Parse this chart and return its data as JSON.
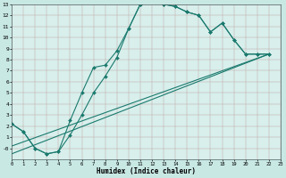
{
  "xlabel": "Humidex (Indice chaleur)",
  "xlim": [
    0,
    23
  ],
  "ylim": [
    -1,
    13
  ],
  "xticks": [
    0,
    1,
    2,
    3,
    4,
    5,
    6,
    7,
    8,
    9,
    10,
    11,
    12,
    13,
    14,
    15,
    16,
    17,
    18,
    19,
    20,
    21,
    22,
    23
  ],
  "yticks": [
    0,
    1,
    2,
    3,
    4,
    5,
    6,
    7,
    8,
    9,
    10,
    11,
    12,
    13
  ],
  "ytick_labels": [
    "-0",
    "1",
    "2",
    "3",
    "4",
    "5",
    "6",
    "7",
    "8",
    "9",
    "10",
    "11",
    "12",
    "13"
  ],
  "line_color": "#1a7a6e",
  "bg_outer": "#c8e8e4",
  "bg_inner": "#d8efec",
  "grid_color": "#c0a8a4",
  "line1_x": [
    0,
    1,
    2,
    3,
    4,
    5,
    6,
    7,
    8,
    9,
    10,
    11,
    12,
    13,
    14,
    15,
    16,
    17,
    18,
    19,
    20,
    21,
    22
  ],
  "line1_y": [
    2.2,
    1.5,
    0.0,
    -0.5,
    -0.3,
    2.5,
    5.0,
    7.3,
    7.5,
    8.8,
    10.8,
    13.0,
    13.2,
    13.0,
    12.8,
    12.3,
    12.0,
    10.5,
    11.3,
    9.8,
    8.5,
    8.5,
    8.5
  ],
  "line2_x": [
    0,
    1,
    2,
    3,
    4,
    5,
    6,
    7,
    8,
    9,
    10,
    11,
    12,
    13,
    14,
    15,
    16,
    17,
    18,
    19,
    20,
    21,
    22
  ],
  "line2_y": [
    2.2,
    1.5,
    0.0,
    -0.5,
    -0.3,
    1.2,
    3.0,
    5.0,
    6.5,
    8.2,
    10.8,
    13.0,
    13.2,
    13.0,
    12.8,
    12.3,
    12.0,
    10.5,
    11.3,
    9.8,
    8.5,
    8.5,
    8.5
  ],
  "line3_x": [
    0,
    22
  ],
  "line3_y": [
    0.2,
    8.5
  ],
  "line4_x": [
    0,
    22
  ],
  "line4_y": [
    -0.5,
    8.5
  ],
  "marker": "D",
  "markersize": 2.0,
  "linewidth": 0.8
}
